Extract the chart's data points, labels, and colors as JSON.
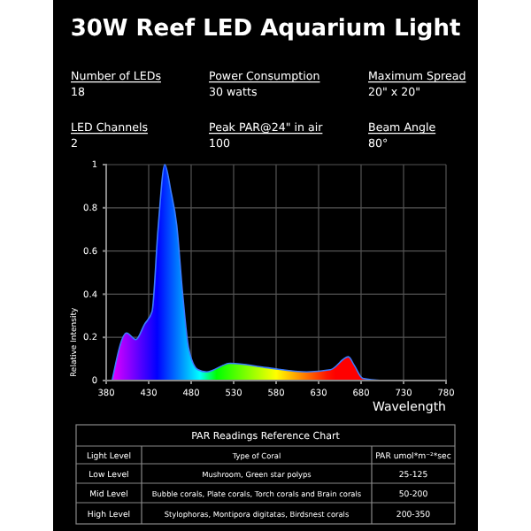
{
  "chart_data": {
    "type": "area",
    "title": "30W Reef LED Aquarium Light",
    "xlabel": "Wavelength",
    "ylabel": "Relative Intensity",
    "x": [
      387,
      404,
      415,
      425,
      434,
      441,
      449,
      456,
      463,
      470,
      477,
      488,
      498,
      526,
      568,
      616,
      644,
      665,
      672,
      682,
      706
    ],
    "series": [
      {
        "color": "#3a7bff",
        "values": [
          0,
          0.22,
          0.19,
          0.26,
          0.32,
          0.7,
          1.0,
          0.88,
          0.72,
          0.4,
          0.15,
          0.05,
          0.04,
          0.08,
          0.06,
          0.04,
          0.05,
          0.11,
          0.07,
          0.01,
          0
        ]
      }
    ],
    "xlim": [
      380,
      780
    ],
    "xticks": [
      380,
      430,
      480,
      530,
      580,
      630,
      680,
      730,
      780
    ],
    "ylim": [
      0,
      1
    ],
    "yticks": [
      0,
      0.2,
      0.4,
      0.6,
      0.8,
      1
    ],
    "grid": true,
    "annotations": [
      "Number of LEDs",
      "18",
      "Power Consumption",
      "30 watts",
      "Maximum Spread",
      "20\" x 20\"",
      "LED Channels",
      "2",
      "Peak PAR@24\" in air",
      "100",
      "Beam Angle",
      "80°",
      "PAR Readings Reference Chart",
      "Light Level",
      "Type of Coral",
      "PAR umol*m⁻²*sec",
      "Low Level",
      "Mushroom, Green star polyps",
      "25-125",
      "Mid Level",
      "Bubble corals, Plate corals, Torch corals and Brain corals",
      "50-200",
      "High Level",
      "Stylophoras, Montipora digitatas, Birdsnest corals",
      "200-350"
    ]
  }
}
